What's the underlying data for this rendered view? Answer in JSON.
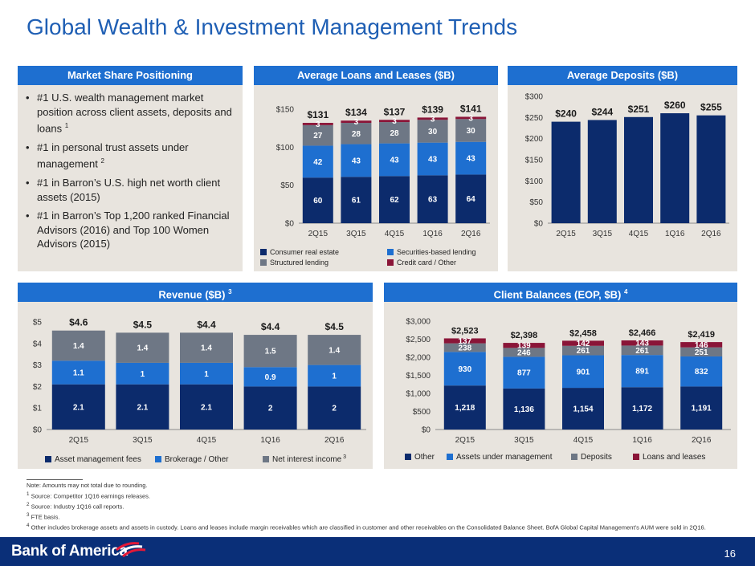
{
  "page": {
    "title": "Global Wealth & Investment Management Trends",
    "page_number": "16"
  },
  "market_share": {
    "header": "Market Share Positioning",
    "bullets": [
      {
        "text": "#1 U.S. wealth management market position across client assets, deposits and loans ",
        "sup": "1"
      },
      {
        "text": "#1 in personal trust assets under management ",
        "sup": "2"
      },
      {
        "text": "#1 in Barron’s U.S. high net worth client assets (2015)",
        "sup": ""
      },
      {
        "text": "#1 in Barron’s Top 1,200 ranked Financial Advisors (2016) and Top 100 Women Advisors (2015)",
        "sup": ""
      }
    ]
  },
  "panels": {
    "loans_header": "Average Loans and Leases ($B)",
    "deposits_header": "Average Deposits ($B)",
    "revenue_header": "Revenue ($B) ",
    "revenue_header_sup": "3",
    "balances_header": "Client Balances (EOP, $B) ",
    "balances_header_sup": "4"
  },
  "chart_data": [
    {
      "id": "loans",
      "type": "bar",
      "stacked": true,
      "title": "Average Loans and Leases ($B)",
      "categories": [
        "2Q15",
        "3Q15",
        "4Q15",
        "1Q16",
        "2Q16"
      ],
      "ylim": [
        0,
        150
      ],
      "yticks": [
        0,
        50,
        100,
        150
      ],
      "ytick_labels": [
        "$0",
        "$50",
        "$100",
        "$150"
      ],
      "series": [
        {
          "name": "Consumer real estate",
          "color": "#0c2b6c",
          "values": [
            60,
            61,
            62,
            63,
            64
          ]
        },
        {
          "name": "Securities-based lending",
          "color": "#1e6fd0",
          "values": [
            42,
            43,
            43,
            43,
            43
          ]
        },
        {
          "name": "Structured lending",
          "color": "#6e7785",
          "values": [
            27,
            28,
            28,
            30,
            30
          ]
        },
        {
          "name": "Credit card / Other",
          "color": "#8a1538",
          "values": [
            3,
            3,
            3,
            3,
            3
          ]
        }
      ],
      "totals": [
        "$131",
        "$134",
        "$137",
        "$139",
        "$141"
      ],
      "legend": "bottom"
    },
    {
      "id": "deposits",
      "type": "bar",
      "title": "Average Deposits ($B)",
      "categories": [
        "2Q15",
        "3Q15",
        "4Q15",
        "1Q16",
        "2Q16"
      ],
      "ylim": [
        0,
        300
      ],
      "yticks": [
        0,
        50,
        100,
        150,
        200,
        250,
        300
      ],
      "ytick_labels": [
        "$0",
        "$50",
        "$100",
        "$150",
        "$200",
        "$250",
        "$300"
      ],
      "series": [
        {
          "name": "",
          "color": "#0c2b6c",
          "values": [
            240,
            244,
            251,
            260,
            255
          ]
        }
      ],
      "totals": [
        "$240",
        "$244",
        "$251",
        "$260",
        "$255"
      ]
    },
    {
      "id": "revenue",
      "type": "bar",
      "stacked": true,
      "title": "Revenue ($B)",
      "categories": [
        "2Q15",
        "3Q15",
        "4Q15",
        "1Q16",
        "2Q16"
      ],
      "ylim": [
        0,
        5
      ],
      "yticks": [
        0,
        1,
        2,
        3,
        4,
        5
      ],
      "ytick_labels": [
        "$0",
        "$1",
        "$2",
        "$3",
        "$4",
        "$5"
      ],
      "series": [
        {
          "name": "Asset management fees",
          "color": "#0c2b6c",
          "values": [
            2.1,
            2.1,
            2.1,
            2.0,
            2.0
          ]
        },
        {
          "name": "Brokerage / Other",
          "color": "#1e6fd0",
          "values": [
            1.1,
            1.0,
            1.0,
            0.9,
            1.0
          ]
        },
        {
          "name": "Net interest income",
          "sup": "3",
          "color": "#6e7785",
          "values": [
            1.4,
            1.4,
            1.4,
            1.5,
            1.4
          ]
        }
      ],
      "totals": [
        "$4.6",
        "$4.5",
        "$4.4",
        "$4.4",
        "$4.5"
      ],
      "legend": "bottom"
    },
    {
      "id": "balances",
      "type": "bar",
      "stacked": true,
      "title": "Client Balances (EOP, $B)",
      "categories": [
        "2Q15",
        "3Q15",
        "4Q15",
        "1Q16",
        "2Q16"
      ],
      "ylim": [
        0,
        3000
      ],
      "yticks": [
        0,
        500,
        1000,
        1500,
        2000,
        2500,
        3000
      ],
      "ytick_labels": [
        "$0",
        "$500",
        "$1,000",
        "$1,500",
        "$2,000",
        "$2,500",
        "$3,000"
      ],
      "series": [
        {
          "name": "Other",
          "color": "#0c2b6c",
          "values": [
            1218,
            1136,
            1154,
            1172,
            1191
          ],
          "labels": [
            "1,218",
            "1,136",
            "1,154",
            "1,172",
            "1,191"
          ]
        },
        {
          "name": "Assets under management",
          "color": "#1e6fd0",
          "values": [
            930,
            877,
            901,
            891,
            832
          ],
          "labels": [
            "930",
            "877",
            "901",
            "891",
            "832"
          ]
        },
        {
          "name": "Deposits",
          "color": "#6e7785",
          "values": [
            238,
            246,
            261,
            261,
            251
          ],
          "labels": [
            "238",
            "246",
            "261",
            "261",
            "251"
          ]
        },
        {
          "name": "Loans and leases",
          "color": "#8a1538",
          "values": [
            137,
            139,
            142,
            143,
            146
          ],
          "labels": [
            "137",
            "139",
            "142",
            "143",
            "146"
          ]
        }
      ],
      "totals": [
        "$2,523",
        "$2,398",
        "$2,458",
        "$2,466",
        "$2,419"
      ],
      "legend": "bottom"
    }
  ],
  "notes": {
    "n0": "Note: Amounts may not total due to rounding.",
    "n1": "Source: Competitor 1Q16 earnings releases.",
    "n2": "Source: Industry 1Q16 call reports.",
    "n3": "FTE basis.",
    "n4": "Other includes brokerage assets and assets in custody. Loans and leases include margin receivables which are classified in customer and other receivables on the Consolidated Balance Sheet. BofA Global Capital Management’s AUM were sold in 2Q16."
  },
  "brand": {
    "name": "Bank of America"
  }
}
